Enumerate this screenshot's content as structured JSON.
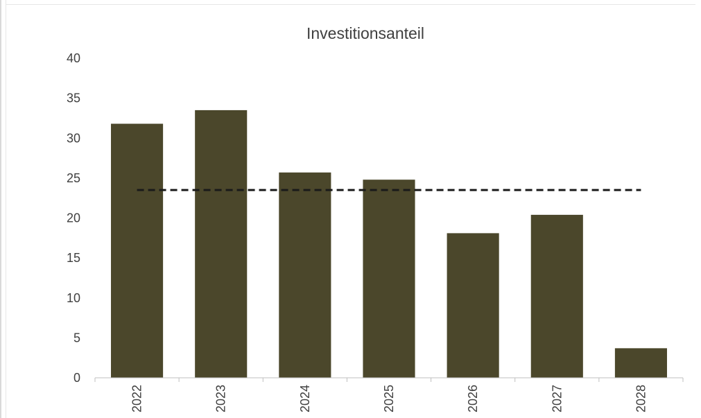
{
  "chart_data": {
    "type": "bar",
    "title": "Investitionsanteil",
    "xlabel": "",
    "ylabel": "",
    "categories": [
      "2022",
      "2023",
      "2024",
      "2025",
      "2026",
      "2027",
      "2028"
    ],
    "series": [
      {
        "values": [
          31.8,
          33.5,
          25.7,
          24.8,
          18.1,
          20.4,
          3.7
        ],
        "color": "#4b472b"
      },
      {
        "type": "line",
        "style": "dashed",
        "color": "#1a1a1a",
        "values": [
          23.5,
          23.5,
          23.5,
          23.5,
          23.5,
          23.5,
          23.5
        ]
      }
    ],
    "ylim": [
      0,
      40
    ],
    "yticks": [
      "0",
      "5",
      "10",
      "15",
      "20",
      "25",
      "30",
      "35",
      "40"
    ],
    "grid": false,
    "legend": "none"
  }
}
